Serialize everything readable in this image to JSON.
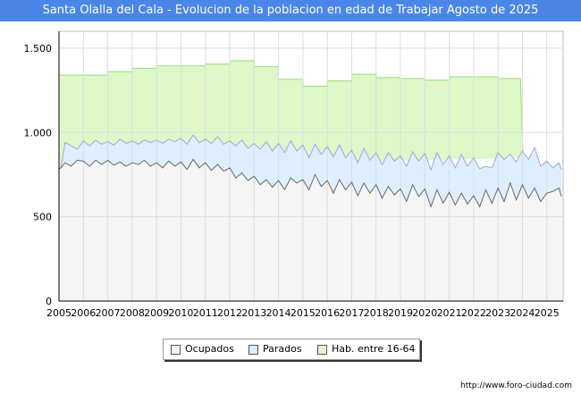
{
  "header": {
    "title": "Santa Olalla del Cala - Evolucion de la poblacion en edad de Trabajar Agosto de 2025"
  },
  "source": "http://www.foro-ciudad.com",
  "colors": {
    "ocupados_fill": "#f5f5f5",
    "ocupados_line": "#666666",
    "parados_fill": "#ddeeff",
    "parados_line": "#99aadd",
    "hab_fill": "#ddf7c8",
    "hab_line": "#99dd77",
    "title_bg": "#4a86e8",
    "grid": "#dddddd"
  },
  "chart_data": {
    "type": "area",
    "title": "Santa Olalla del Cala - Evolucion de la poblacion en edad de Trabajar Agosto de 2025",
    "xlabel": "",
    "ylabel": "",
    "xlim": [
      2005,
      2025.67
    ],
    "ylim": [
      0,
      1600
    ],
    "yticks": [
      0,
      500,
      1000,
      1500
    ],
    "ytick_labels": [
      "0",
      "500",
      "1.000",
      "1.500"
    ],
    "xtick_labels": [
      "2005",
      "2006",
      "2007",
      "2008",
      "2009",
      "2010",
      "2011",
      "2012",
      "2013",
      "2014",
      "2015",
      "2016",
      "2017",
      "2018",
      "2019",
      "2020",
      "2021",
      "2022",
      "2023",
      "2024",
      "2025"
    ],
    "grid": true,
    "legend_position": "bottom-center",
    "legend": [
      "Ocupados",
      "Parados",
      "Hab. entre 16-64"
    ],
    "series": [
      {
        "name": "Hab. entre 16-64",
        "type": "step",
        "x": [
          2005,
          2006,
          2007,
          2008,
          2009,
          2010,
          2011,
          2012,
          2013,
          2014,
          2015,
          2016,
          2017,
          2018,
          2019,
          2020,
          2021,
          2022,
          2023,
          2024
        ],
        "values": [
          1340,
          1340,
          1360,
          1380,
          1395,
          1395,
          1405,
          1425,
          1390,
          1315,
          1275,
          1305,
          1345,
          1325,
          1320,
          1310,
          1330,
          1330,
          1320,
          null
        ]
      },
      {
        "name": "Parados",
        "type": "line",
        "x": [
          2005.0,
          2005.08,
          2005.25,
          2005.5,
          2005.75,
          2006.0,
          2006.25,
          2006.5,
          2006.75,
          2007.0,
          2007.25,
          2007.5,
          2007.75,
          2008.0,
          2008.25,
          2008.5,
          2008.75,
          2009.0,
          2009.25,
          2009.5,
          2009.75,
          2010.0,
          2010.25,
          2010.5,
          2010.75,
          2011.0,
          2011.25,
          2011.5,
          2011.75,
          2012.0,
          2012.25,
          2012.5,
          2012.75,
          2013.0,
          2013.25,
          2013.5,
          2013.75,
          2014.0,
          2014.25,
          2014.5,
          2014.75,
          2015.0,
          2015.25,
          2015.5,
          2015.75,
          2016.0,
          2016.25,
          2016.5,
          2016.75,
          2017.0,
          2017.25,
          2017.5,
          2017.75,
          2018.0,
          2018.25,
          2018.5,
          2018.75,
          2019.0,
          2019.25,
          2019.5,
          2019.75,
          2020.0,
          2020.25,
          2020.5,
          2020.75,
          2021.0,
          2021.25,
          2021.5,
          2021.75,
          2022.0,
          2022.25,
          2022.5,
          2022.75,
          2023.0,
          2023.25,
          2023.5,
          2023.75,
          2024.0,
          2024.25,
          2024.5,
          2024.75,
          2025.0,
          2025.25,
          2025.5,
          2025.6
        ],
        "values": [
          785,
          790,
          940,
          920,
          900,
          950,
          920,
          955,
          930,
          945,
          925,
          960,
          935,
          950,
          930,
          955,
          940,
          955,
          935,
          960,
          945,
          965,
          930,
          985,
          940,
          960,
          935,
          975,
          930,
          950,
          920,
          955,
          905,
          935,
          900,
          945,
          890,
          935,
          880,
          950,
          890,
          925,
          850,
          930,
          870,
          915,
          855,
          925,
          850,
          895,
          820,
          905,
          835,
          880,
          810,
          880,
          830,
          860,
          800,
          885,
          830,
          875,
          780,
          880,
          810,
          860,
          790,
          870,
          800,
          850,
          785,
          800,
          790,
          880,
          840,
          870,
          825,
          890,
          840,
          910,
          800,
          830,
          790,
          820,
          780
        ]
      },
      {
        "name": "Ocupados",
        "type": "line",
        "x": [
          2005.0,
          2005.08,
          2005.25,
          2005.5,
          2005.75,
          2006.0,
          2006.25,
          2006.5,
          2006.75,
          2007.0,
          2007.25,
          2007.5,
          2007.75,
          2008.0,
          2008.25,
          2008.5,
          2008.75,
          2009.0,
          2009.25,
          2009.5,
          2009.75,
          2010.0,
          2010.25,
          2010.5,
          2010.75,
          2011.0,
          2011.25,
          2011.5,
          2011.75,
          2012.0,
          2012.25,
          2012.5,
          2012.75,
          2013.0,
          2013.25,
          2013.5,
          2013.75,
          2014.0,
          2014.25,
          2014.5,
          2014.75,
          2015.0,
          2015.25,
          2015.5,
          2015.75,
          2016.0,
          2016.25,
          2016.5,
          2016.75,
          2017.0,
          2017.25,
          2017.5,
          2017.75,
          2018.0,
          2018.25,
          2018.5,
          2018.75,
          2019.0,
          2019.25,
          2019.5,
          2019.75,
          2020.0,
          2020.25,
          2020.5,
          2020.75,
          2021.0,
          2021.25,
          2021.5,
          2021.75,
          2022.0,
          2022.25,
          2022.5,
          2022.75,
          2023.0,
          2023.25,
          2023.5,
          2023.75,
          2024.0,
          2024.25,
          2024.5,
          2024.75,
          2025.0,
          2025.25,
          2025.5,
          2025.6
        ],
        "values": [
          785,
          790,
          820,
          800,
          835,
          830,
          800,
          835,
          810,
          835,
          805,
          825,
          800,
          820,
          810,
          835,
          800,
          820,
          790,
          830,
          800,
          825,
          780,
          840,
          790,
          820,
          775,
          810,
          770,
          790,
          730,
          760,
          715,
          740,
          690,
          720,
          675,
          715,
          660,
          730,
          700,
          720,
          660,
          750,
          680,
          715,
          640,
          720,
          660,
          705,
          625,
          700,
          640,
          690,
          610,
          680,
          630,
          665,
          590,
          690,
          620,
          665,
          560,
          660,
          580,
          645,
          570,
          640,
          575,
          625,
          560,
          660,
          580,
          670,
          590,
          700,
          600,
          690,
          610,
          670,
          590,
          640,
          650,
          670,
          620
        ]
      }
    ]
  }
}
